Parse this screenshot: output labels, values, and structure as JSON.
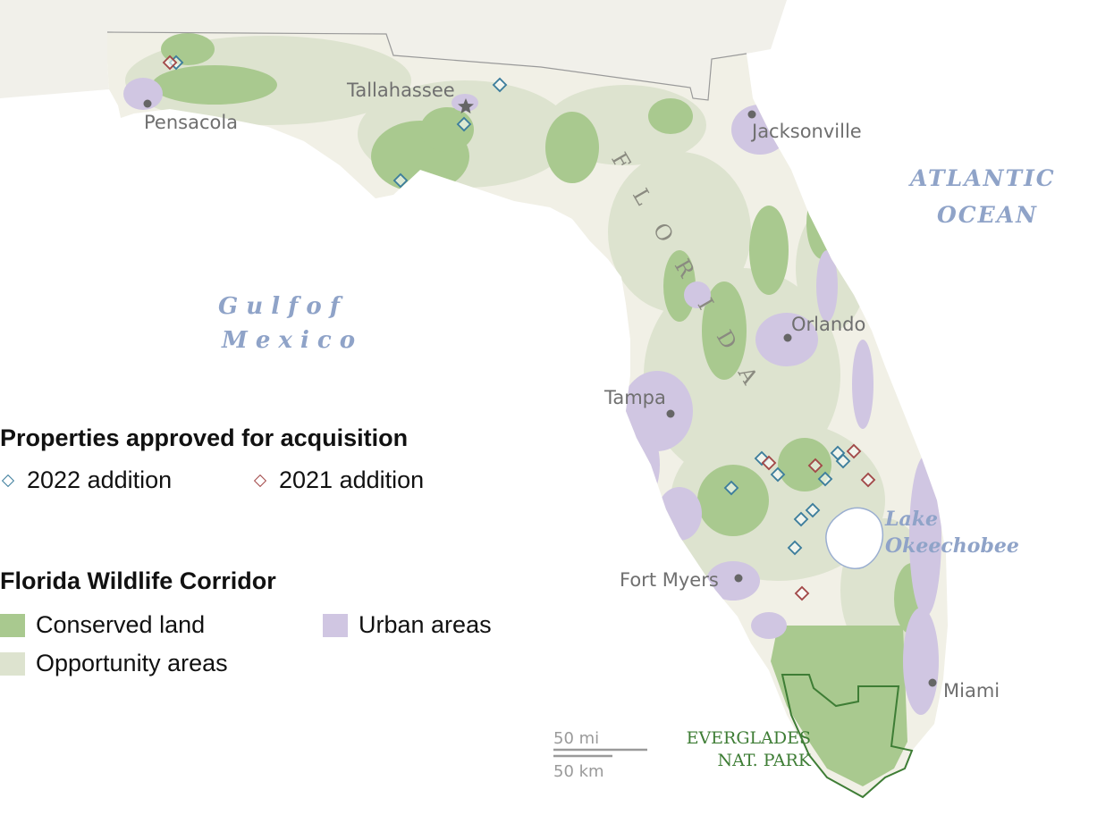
{
  "colors": {
    "background": "#ffffff",
    "land": "#f1f0e6",
    "outside_land": "#f1f0ea",
    "conserved": "#a9c98f",
    "opportunity": "#dde3cf",
    "urban": "#d0c6e2",
    "lake_border": "#9aaed0",
    "marker_2022": "#3c7d9c",
    "marker_2021": "#a24848",
    "everglades_outline": "#3e7d35",
    "water_label": "#8fa3c8"
  },
  "map": {
    "state_label": "FLORIDA",
    "water_labels": {
      "gulf_line1": "G u l f   o f",
      "gulf_line2": "M e x i c o",
      "atlantic_line1": "ATLANTIC",
      "atlantic_line2": "OCEAN",
      "lake_line1": "Lake",
      "lake_line2": "Okeechobee"
    },
    "cities": [
      {
        "name": "Pensacola",
        "marker": "dot"
      },
      {
        "name": "Tallahassee",
        "marker": "star"
      },
      {
        "name": "Jacksonville",
        "marker": "dot"
      },
      {
        "name": "Orlando",
        "marker": "dot"
      },
      {
        "name": "Tampa",
        "marker": "dot"
      },
      {
        "name": "Fort Myers",
        "marker": "dot"
      },
      {
        "name": "Miami",
        "marker": "dot"
      }
    ],
    "park_label_line1": "EVERGLADES",
    "park_label_line2": "NAT. PARK",
    "scale": {
      "miles": "50 mi",
      "km": "50 km"
    }
  },
  "legend": {
    "acquisition_title": "Properties approved for acquisition",
    "additions": [
      {
        "label": "2022 addition",
        "color": "#3c7d9c",
        "icon": "diamond-outline-icon"
      },
      {
        "label": "2021 addition",
        "color": "#a24848",
        "icon": "diamond-outline-icon"
      }
    ],
    "corridor_title": "Florida Wildlife Corridor",
    "categories": [
      {
        "label": "Conserved land",
        "color": "#a9c98f"
      },
      {
        "label": "Urban areas",
        "color": "#d0c6e2"
      },
      {
        "label": "Opportunity areas",
        "color": "#dde3cf"
      }
    ]
  }
}
